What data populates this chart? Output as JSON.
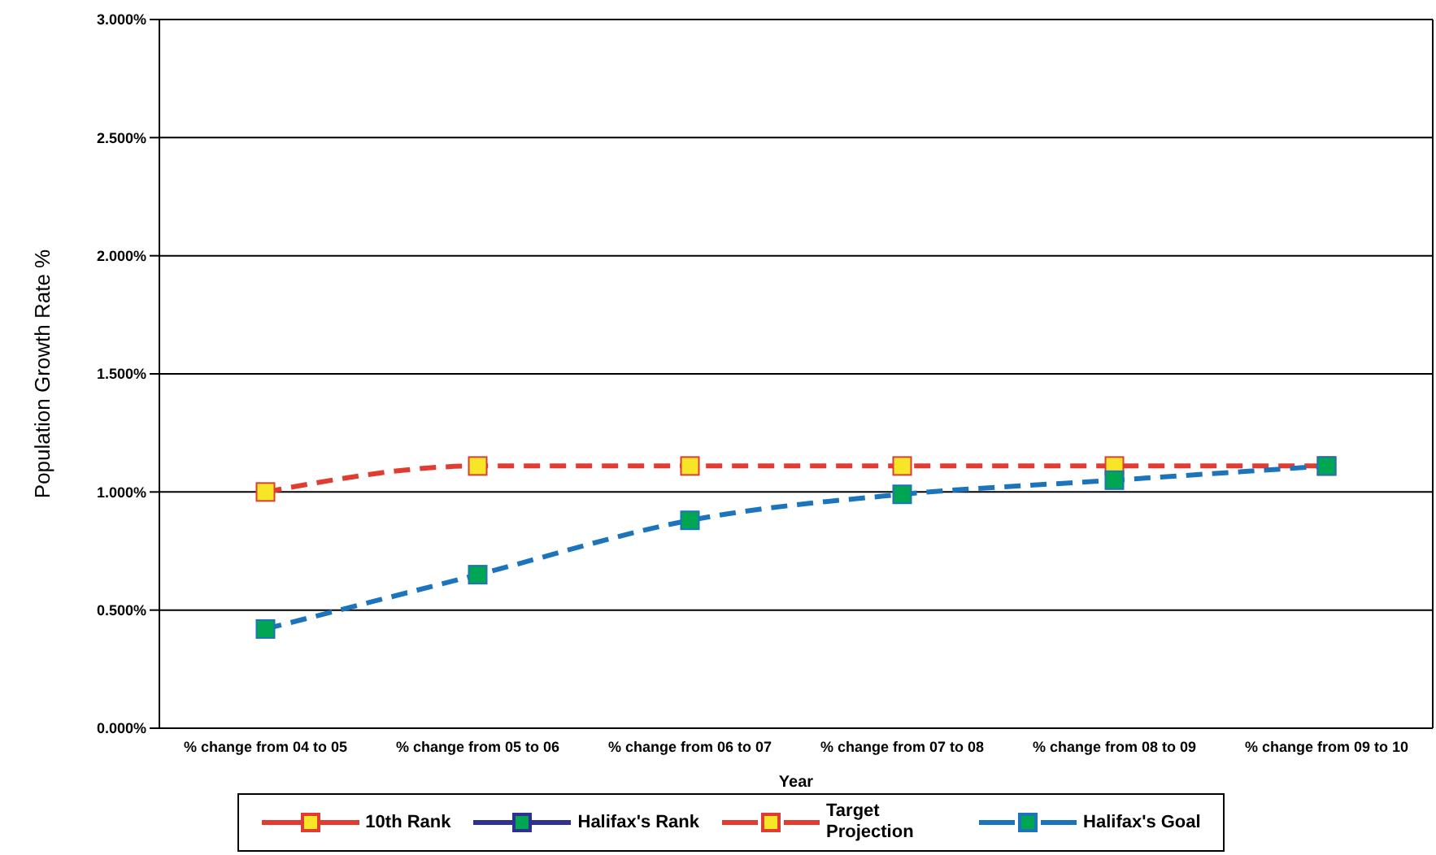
{
  "chart_data": {
    "type": "line",
    "xlabel": "Year",
    "ylabel": "Population Growth Rate %",
    "categories": [
      "% change from 04 to 05",
      "% change from 05 to 06",
      "% change from 06 to 07",
      "% change from 07 to 08",
      "% change from 08 to 09",
      "% change from 09 to 10"
    ],
    "series": [
      {
        "name": "10th Rank",
        "color": "#e03c31",
        "line_style": "solid",
        "marker": "square",
        "values": [
          null,
          null,
          null,
          null,
          null,
          null
        ]
      },
      {
        "name": "Halifax's Rank",
        "color": "#2e3192",
        "line_style": "solid",
        "marker": "square",
        "values": [
          null,
          null,
          null,
          null,
          null,
          null
        ]
      },
      {
        "name": "Target Projection",
        "color": "#e03c31",
        "line_style": "dashed",
        "marker": "square",
        "values": [
          1.0,
          1.11,
          1.11,
          1.11,
          1.11,
          1.11
        ]
      },
      {
        "name": "Halifax's Goal",
        "color": "#1c75bc",
        "line_style": "dashed",
        "marker": "square",
        "values": [
          0.42,
          0.65,
          0.88,
          0.99,
          1.05,
          1.11
        ]
      }
    ],
    "ylim": [
      0,
      3
    ],
    "yticks": [
      {
        "value": 0,
        "label": "0.000%"
      },
      {
        "value": 0.5,
        "label": "0.500%"
      },
      {
        "value": 1,
        "label": "1.000%"
      },
      {
        "value": 1.5,
        "label": "1.500%"
      },
      {
        "value": 2,
        "label": "2.000%"
      },
      {
        "value": 2.5,
        "label": "2.500%"
      },
      {
        "value": 3,
        "label": "3.000%"
      }
    ],
    "grid": "y",
    "legend": "bottom"
  }
}
